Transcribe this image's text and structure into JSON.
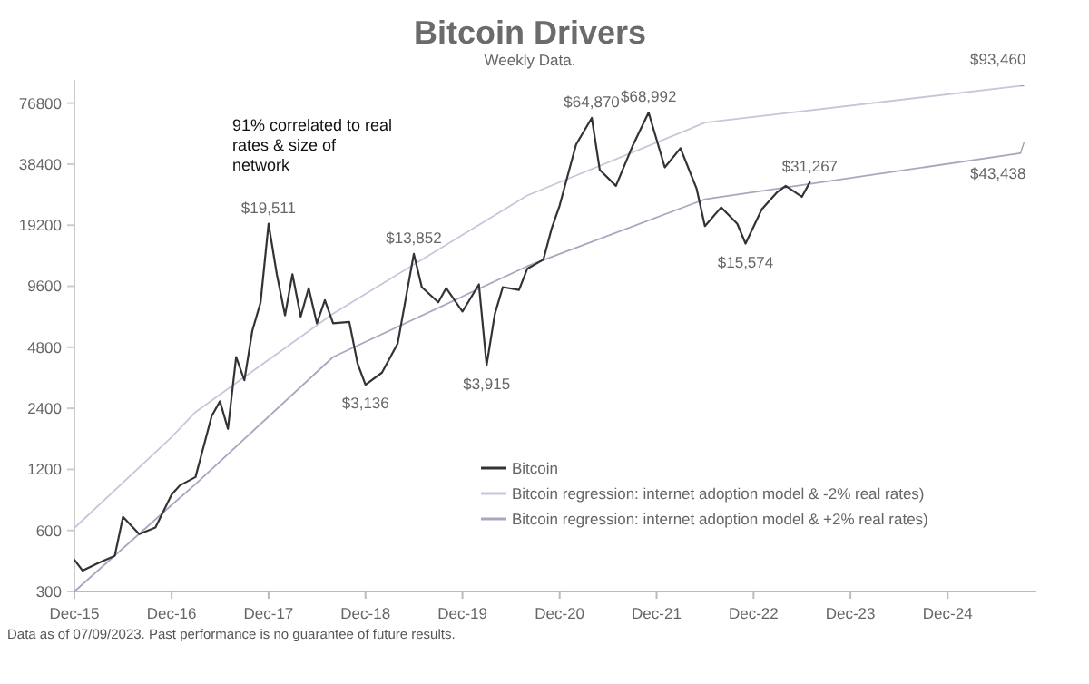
{
  "chart_data": {
    "type": "line",
    "title": "Bitcoin Drivers",
    "subtitle": "Weekly Data.",
    "log": "y",
    "legend": "bottom right",
    "xlim": [
      "2015-12-01",
      "2025-10-31"
    ],
    "xticks": [
      {
        "value": "2015-12-01",
        "label": "Dec-15"
      },
      {
        "value": "2016-12-01",
        "label": "Dec-16"
      },
      {
        "value": "2017-12-01",
        "label": "Dec-17"
      },
      {
        "value": "2018-12-01",
        "label": "Dec-18"
      },
      {
        "value": "2019-12-01",
        "label": "Dec-19"
      },
      {
        "value": "2020-12-01",
        "label": "Dec-20"
      },
      {
        "value": "2021-12-01",
        "label": "Dec-21"
      },
      {
        "value": "2022-12-01",
        "label": "Dec-22"
      },
      {
        "value": "2023-12-01",
        "label": "Dec-23"
      },
      {
        "value": "2024-12-01",
        "label": "Dec-24"
      }
    ],
    "ylim": [
      300,
      100000
    ],
    "yticks": [
      300,
      600,
      1200,
      2400,
      4800,
      9600,
      19200,
      38400,
      76800
    ],
    "series": [
      {
        "name": "Bitcoin",
        "color": "#333333",
        "x": [
          "2015-12",
          "2016-01",
          "2016-03",
          "2016-05",
          "2016-06",
          "2016-08",
          "2016-10",
          "2016-12",
          "2017-01",
          "2017-03",
          "2017-05",
          "2017-06",
          "2017-07",
          "2017-08",
          "2017-09",
          "2017-10",
          "2017-11",
          "2017-12",
          "2018-01",
          "2018-02",
          "2018-03",
          "2018-04",
          "2018-05",
          "2018-06",
          "2018-07",
          "2018-08",
          "2018-10",
          "2018-11",
          "2018-12",
          "2019-02",
          "2019-04",
          "2019-06",
          "2019-07",
          "2019-09",
          "2019-10",
          "2019-12",
          "2020-02",
          "2020-03",
          "2020-04",
          "2020-05",
          "2020-07",
          "2020-08",
          "2020-10",
          "2020-11",
          "2020-12",
          "2021-01",
          "2021-02",
          "2021-04",
          "2021-05",
          "2021-07",
          "2021-09",
          "2021-11",
          "2022-01",
          "2022-03",
          "2022-05",
          "2022-06",
          "2022-08",
          "2022-10",
          "2022-11",
          "2023-01",
          "2023-03",
          "2023-04",
          "2023-06",
          "2023-07"
        ],
        "values": [
          430,
          380,
          415,
          450,
          700,
          575,
          620,
          900,
          1000,
          1100,
          2200,
          2600,
          1900,
          4300,
          3300,
          5800,
          8000,
          19511,
          11000,
          6900,
          11000,
          6800,
          9400,
          6300,
          8200,
          6300,
          6400,
          4000,
          3136,
          3600,
          5000,
          13852,
          9500,
          8000,
          9400,
          7200,
          9800,
          3915,
          7000,
          9500,
          9200,
          11700,
          13000,
          18500,
          24000,
          34000,
          48000,
          64870,
          36000,
          30000,
          47000,
          68992,
          37000,
          46000,
          29000,
          19000,
          23500,
          19500,
          15574,
          23000,
          28000,
          30000,
          26500,
          31267
        ]
      },
      {
        "name": "Bitcoin regression: internet adoption model & -2% real rates)",
        "color": "#c9c5da",
        "x": [
          "2015-12",
          "2016-12",
          "2017-03",
          "2018-08",
          "2020-08",
          "2022-06",
          "2025-09"
        ],
        "values": [
          617,
          1730,
          2300,
          7030,
          26900,
          61500,
          93460
        ]
      },
      {
        "name": "Bitcoin regression: internet adoption model & +2% real rates)",
        "color": "#aaa6c0",
        "x": [
          "2015-12",
          "2016-12",
          "2017-03",
          "2018-08",
          "2020-08",
          "2022-06",
          "2025-09"
        ],
        "values": [
          300,
          800,
          1015,
          4300,
          12050,
          25800,
          43438
        ]
      }
    ],
    "annotations": [
      "91% correlated to real rates & size of network",
      {
        "text": "$19,511",
        "x": "2017-12",
        "y": 19511
      },
      {
        "text": "$3,136",
        "x": "2018-12",
        "y": 3136
      },
      {
        "text": "$13,852",
        "x": "2019-06",
        "y": 13852
      },
      {
        "text": "$3,915",
        "x": "2020-03",
        "y": 3915
      },
      {
        "text": "$64,870",
        "x": "2021-04",
        "y": 64870
      },
      {
        "text": "$68,992",
        "x": "2021-11",
        "y": 68992
      },
      {
        "text": "$15,574",
        "x": "2022-11",
        "y": 15574
      },
      {
        "text": "$31,267",
        "x": "2023-07",
        "y": 31267
      },
      {
        "text": "$93,460",
        "x": "2025-09",
        "y": 93460
      },
      {
        "text": "$43,438",
        "x": "2025-09",
        "y": 43438
      },
      "Data as of 07/09/2023. Past performance is no guarantee of future results."
    ]
  }
}
